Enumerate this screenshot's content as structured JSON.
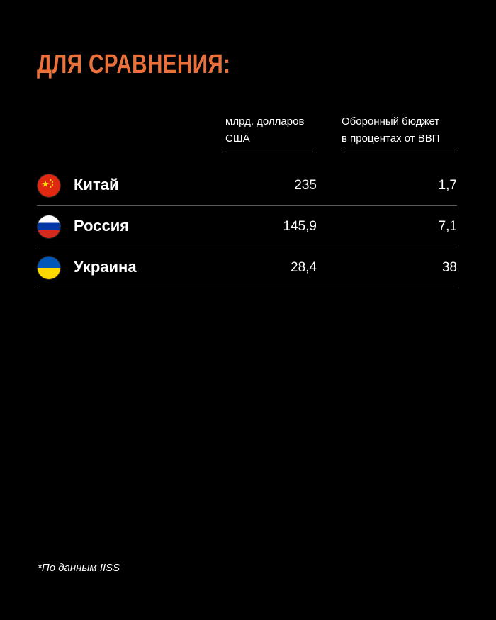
{
  "title": "ДЛЯ СРАВНЕНИЯ:",
  "colors": {
    "accent": "#e8713c",
    "background": "#000000",
    "text": "#ffffff",
    "divider": "#5a5a5a"
  },
  "columns": {
    "usd": {
      "line1": "млрд. долларов",
      "line2": "США"
    },
    "gdp": {
      "line1": "Оборонный бюджет",
      "line2": "в процентах от ВВП"
    }
  },
  "rows": [
    {
      "country": "Китай",
      "flag_icon": "china-flag-icon",
      "usd": "235",
      "gdp": "1,7"
    },
    {
      "country": "Россия",
      "flag_icon": "russia-flag-icon",
      "usd": "145,9",
      "gdp": "7,1"
    },
    {
      "country": "Украина",
      "flag_icon": "ukraine-flag-icon",
      "usd": "28,4",
      "gdp": "38"
    }
  ],
  "footnote": "*По данным IISS"
}
